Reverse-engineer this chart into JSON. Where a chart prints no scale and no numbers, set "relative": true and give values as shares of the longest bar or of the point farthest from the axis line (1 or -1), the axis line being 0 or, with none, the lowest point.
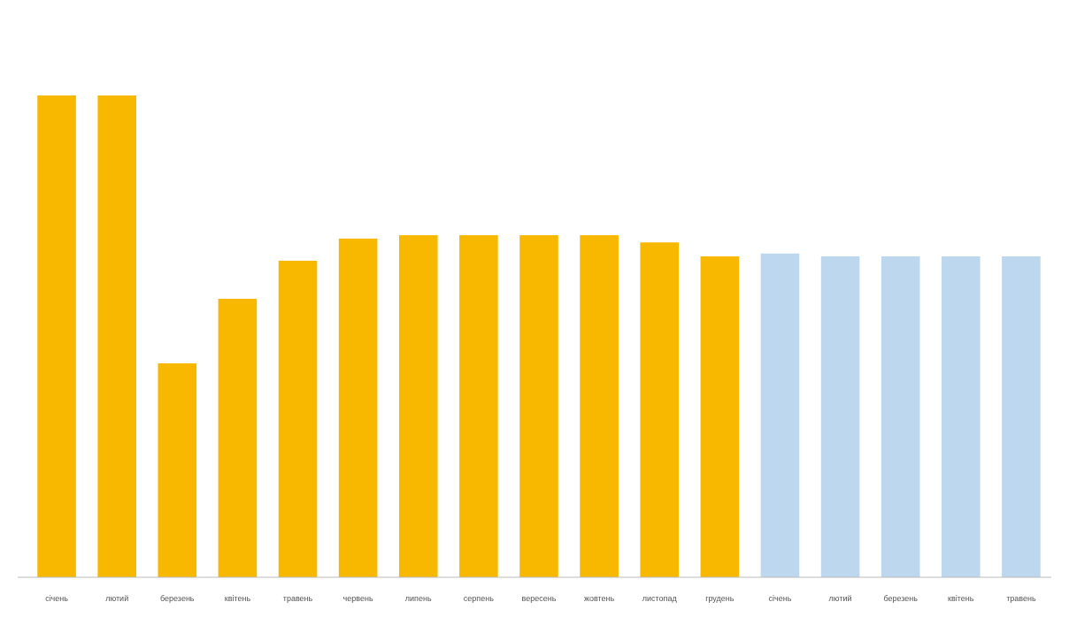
{
  "chart_data": {
    "type": "bar",
    "relative": true,
    "categories": [
      "січень",
      "лютий",
      "березень",
      "квітень",
      "травень",
      "червень",
      "липень",
      "серпень",
      "вересень",
      "жовтень",
      "листопад",
      "грудень",
      "січень",
      "лютий",
      "березень",
      "квітень",
      "травень"
    ],
    "values": [
      1,
      1,
      0.444,
      0.578,
      0.657,
      0.703,
      0.71,
      0.71,
      0.71,
      0.71,
      0.695,
      0.666,
      0.672,
      0.666,
      0.666,
      0.666,
      0.666
    ],
    "colors": [
      "#f9b800",
      "#f9b800",
      "#f9b800",
      "#f9b800",
      "#f9b800",
      "#f9b800",
      "#f9b800",
      "#f9b800",
      "#f9b800",
      "#f9b800",
      "#f9b800",
      "#f9b800",
      "#bdd7ee",
      "#bdd7ee",
      "#bdd7ee",
      "#bdd7ee",
      "#bdd7ee"
    ]
  }
}
